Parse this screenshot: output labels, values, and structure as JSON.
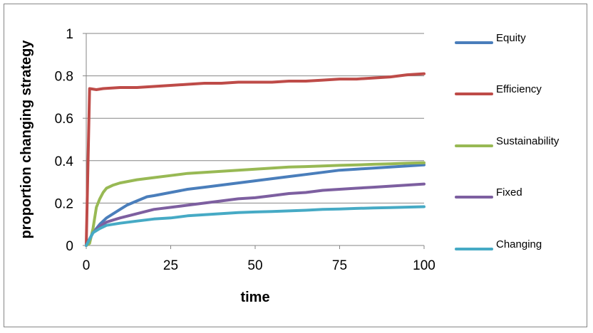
{
  "chart_data": {
    "type": "line",
    "title": "",
    "xlabel": "time",
    "ylabel": "proportion changing strategy",
    "xlim": [
      0,
      100
    ],
    "ylim": [
      0,
      1
    ],
    "xticks": [
      0,
      25,
      50,
      75,
      100
    ],
    "yticks": [
      0,
      0.2,
      0.4,
      0.6,
      0.8,
      1
    ],
    "xtick_labels": [
      "0",
      "25",
      "50",
      "75",
      "100"
    ],
    "ytick_labels": [
      "0",
      "0.2",
      "0.4",
      "0.6",
      "0.8",
      "1"
    ],
    "grid": "horizontal",
    "legend_position": "right",
    "series": [
      {
        "name": "Equity",
        "color": "#4A7EBB",
        "points": [
          [
            0,
            0
          ],
          [
            1,
            0.03
          ],
          [
            2,
            0.06
          ],
          [
            4,
            0.1
          ],
          [
            6,
            0.13
          ],
          [
            8,
            0.15
          ],
          [
            10,
            0.17
          ],
          [
            12,
            0.19
          ],
          [
            15,
            0.21
          ],
          [
            18,
            0.23
          ],
          [
            20,
            0.235
          ],
          [
            25,
            0.25
          ],
          [
            30,
            0.265
          ],
          [
            35,
            0.275
          ],
          [
            40,
            0.285
          ],
          [
            45,
            0.295
          ],
          [
            50,
            0.305
          ],
          [
            55,
            0.315
          ],
          [
            60,
            0.325
          ],
          [
            65,
            0.335
          ],
          [
            70,
            0.345
          ],
          [
            75,
            0.355
          ],
          [
            80,
            0.36
          ],
          [
            85,
            0.365
          ],
          [
            90,
            0.37
          ],
          [
            95,
            0.375
          ],
          [
            100,
            0.38
          ]
        ]
      },
      {
        "name": "Efficiency",
        "color": "#BE4B48",
        "points": [
          [
            0,
            0
          ],
          [
            1,
            0.74
          ],
          [
            3,
            0.735
          ],
          [
            5,
            0.74
          ],
          [
            10,
            0.745
          ],
          [
            15,
            0.745
          ],
          [
            20,
            0.75
          ],
          [
            25,
            0.755
          ],
          [
            30,
            0.76
          ],
          [
            35,
            0.765
          ],
          [
            40,
            0.765
          ],
          [
            45,
            0.77
          ],
          [
            50,
            0.77
          ],
          [
            55,
            0.77
          ],
          [
            60,
            0.775
          ],
          [
            65,
            0.775
          ],
          [
            70,
            0.78
          ],
          [
            75,
            0.785
          ],
          [
            80,
            0.785
          ],
          [
            85,
            0.79
          ],
          [
            90,
            0.795
          ],
          [
            95,
            0.805
          ],
          [
            100,
            0.81
          ]
        ]
      },
      {
        "name": "Sustainability",
        "color": "#98B954",
        "points": [
          [
            0,
            0
          ],
          [
            1,
            0.01
          ],
          [
            2,
            0.08
          ],
          [
            3,
            0.18
          ],
          [
            4,
            0.22
          ],
          [
            5,
            0.25
          ],
          [
            6,
            0.27
          ],
          [
            8,
            0.285
          ],
          [
            10,
            0.295
          ],
          [
            15,
            0.31
          ],
          [
            20,
            0.32
          ],
          [
            25,
            0.33
          ],
          [
            30,
            0.34
          ],
          [
            35,
            0.345
          ],
          [
            40,
            0.35
          ],
          [
            45,
            0.355
          ],
          [
            50,
            0.36
          ],
          [
            55,
            0.365
          ],
          [
            60,
            0.37
          ],
          [
            65,
            0.372
          ],
          [
            70,
            0.375
          ],
          [
            75,
            0.378
          ],
          [
            80,
            0.38
          ],
          [
            85,
            0.383
          ],
          [
            90,
            0.385
          ],
          [
            95,
            0.388
          ],
          [
            100,
            0.39
          ]
        ]
      },
      {
        "name": "Fixed",
        "color": "#7D5FA0",
        "points": [
          [
            0,
            0
          ],
          [
            1,
            0.03
          ],
          [
            2,
            0.06
          ],
          [
            4,
            0.09
          ],
          [
            6,
            0.11
          ],
          [
            8,
            0.12
          ],
          [
            10,
            0.13
          ],
          [
            15,
            0.15
          ],
          [
            20,
            0.17
          ],
          [
            25,
            0.18
          ],
          [
            30,
            0.19
          ],
          [
            35,
            0.2
          ],
          [
            40,
            0.21
          ],
          [
            45,
            0.22
          ],
          [
            50,
            0.225
          ],
          [
            55,
            0.235
          ],
          [
            60,
            0.245
          ],
          [
            65,
            0.25
          ],
          [
            70,
            0.26
          ],
          [
            75,
            0.265
          ],
          [
            80,
            0.27
          ],
          [
            85,
            0.275
          ],
          [
            90,
            0.28
          ],
          [
            95,
            0.285
          ],
          [
            100,
            0.29
          ]
        ]
      },
      {
        "name": "Changing",
        "color": "#46AAC5",
        "points": [
          [
            0,
            0
          ],
          [
            1,
            0.03
          ],
          [
            2,
            0.06
          ],
          [
            4,
            0.08
          ],
          [
            6,
            0.095
          ],
          [
            8,
            0.1
          ],
          [
            10,
            0.105
          ],
          [
            15,
            0.115
          ],
          [
            20,
            0.125
          ],
          [
            25,
            0.13
          ],
          [
            30,
            0.14
          ],
          [
            35,
            0.145
          ],
          [
            40,
            0.15
          ],
          [
            45,
            0.155
          ],
          [
            50,
            0.158
          ],
          [
            55,
            0.16
          ],
          [
            60,
            0.163
          ],
          [
            65,
            0.166
          ],
          [
            70,
            0.17
          ],
          [
            75,
            0.172
          ],
          [
            80,
            0.175
          ],
          [
            85,
            0.177
          ],
          [
            90,
            0.179
          ],
          [
            95,
            0.181
          ],
          [
            100,
            0.183
          ]
        ]
      }
    ]
  }
}
